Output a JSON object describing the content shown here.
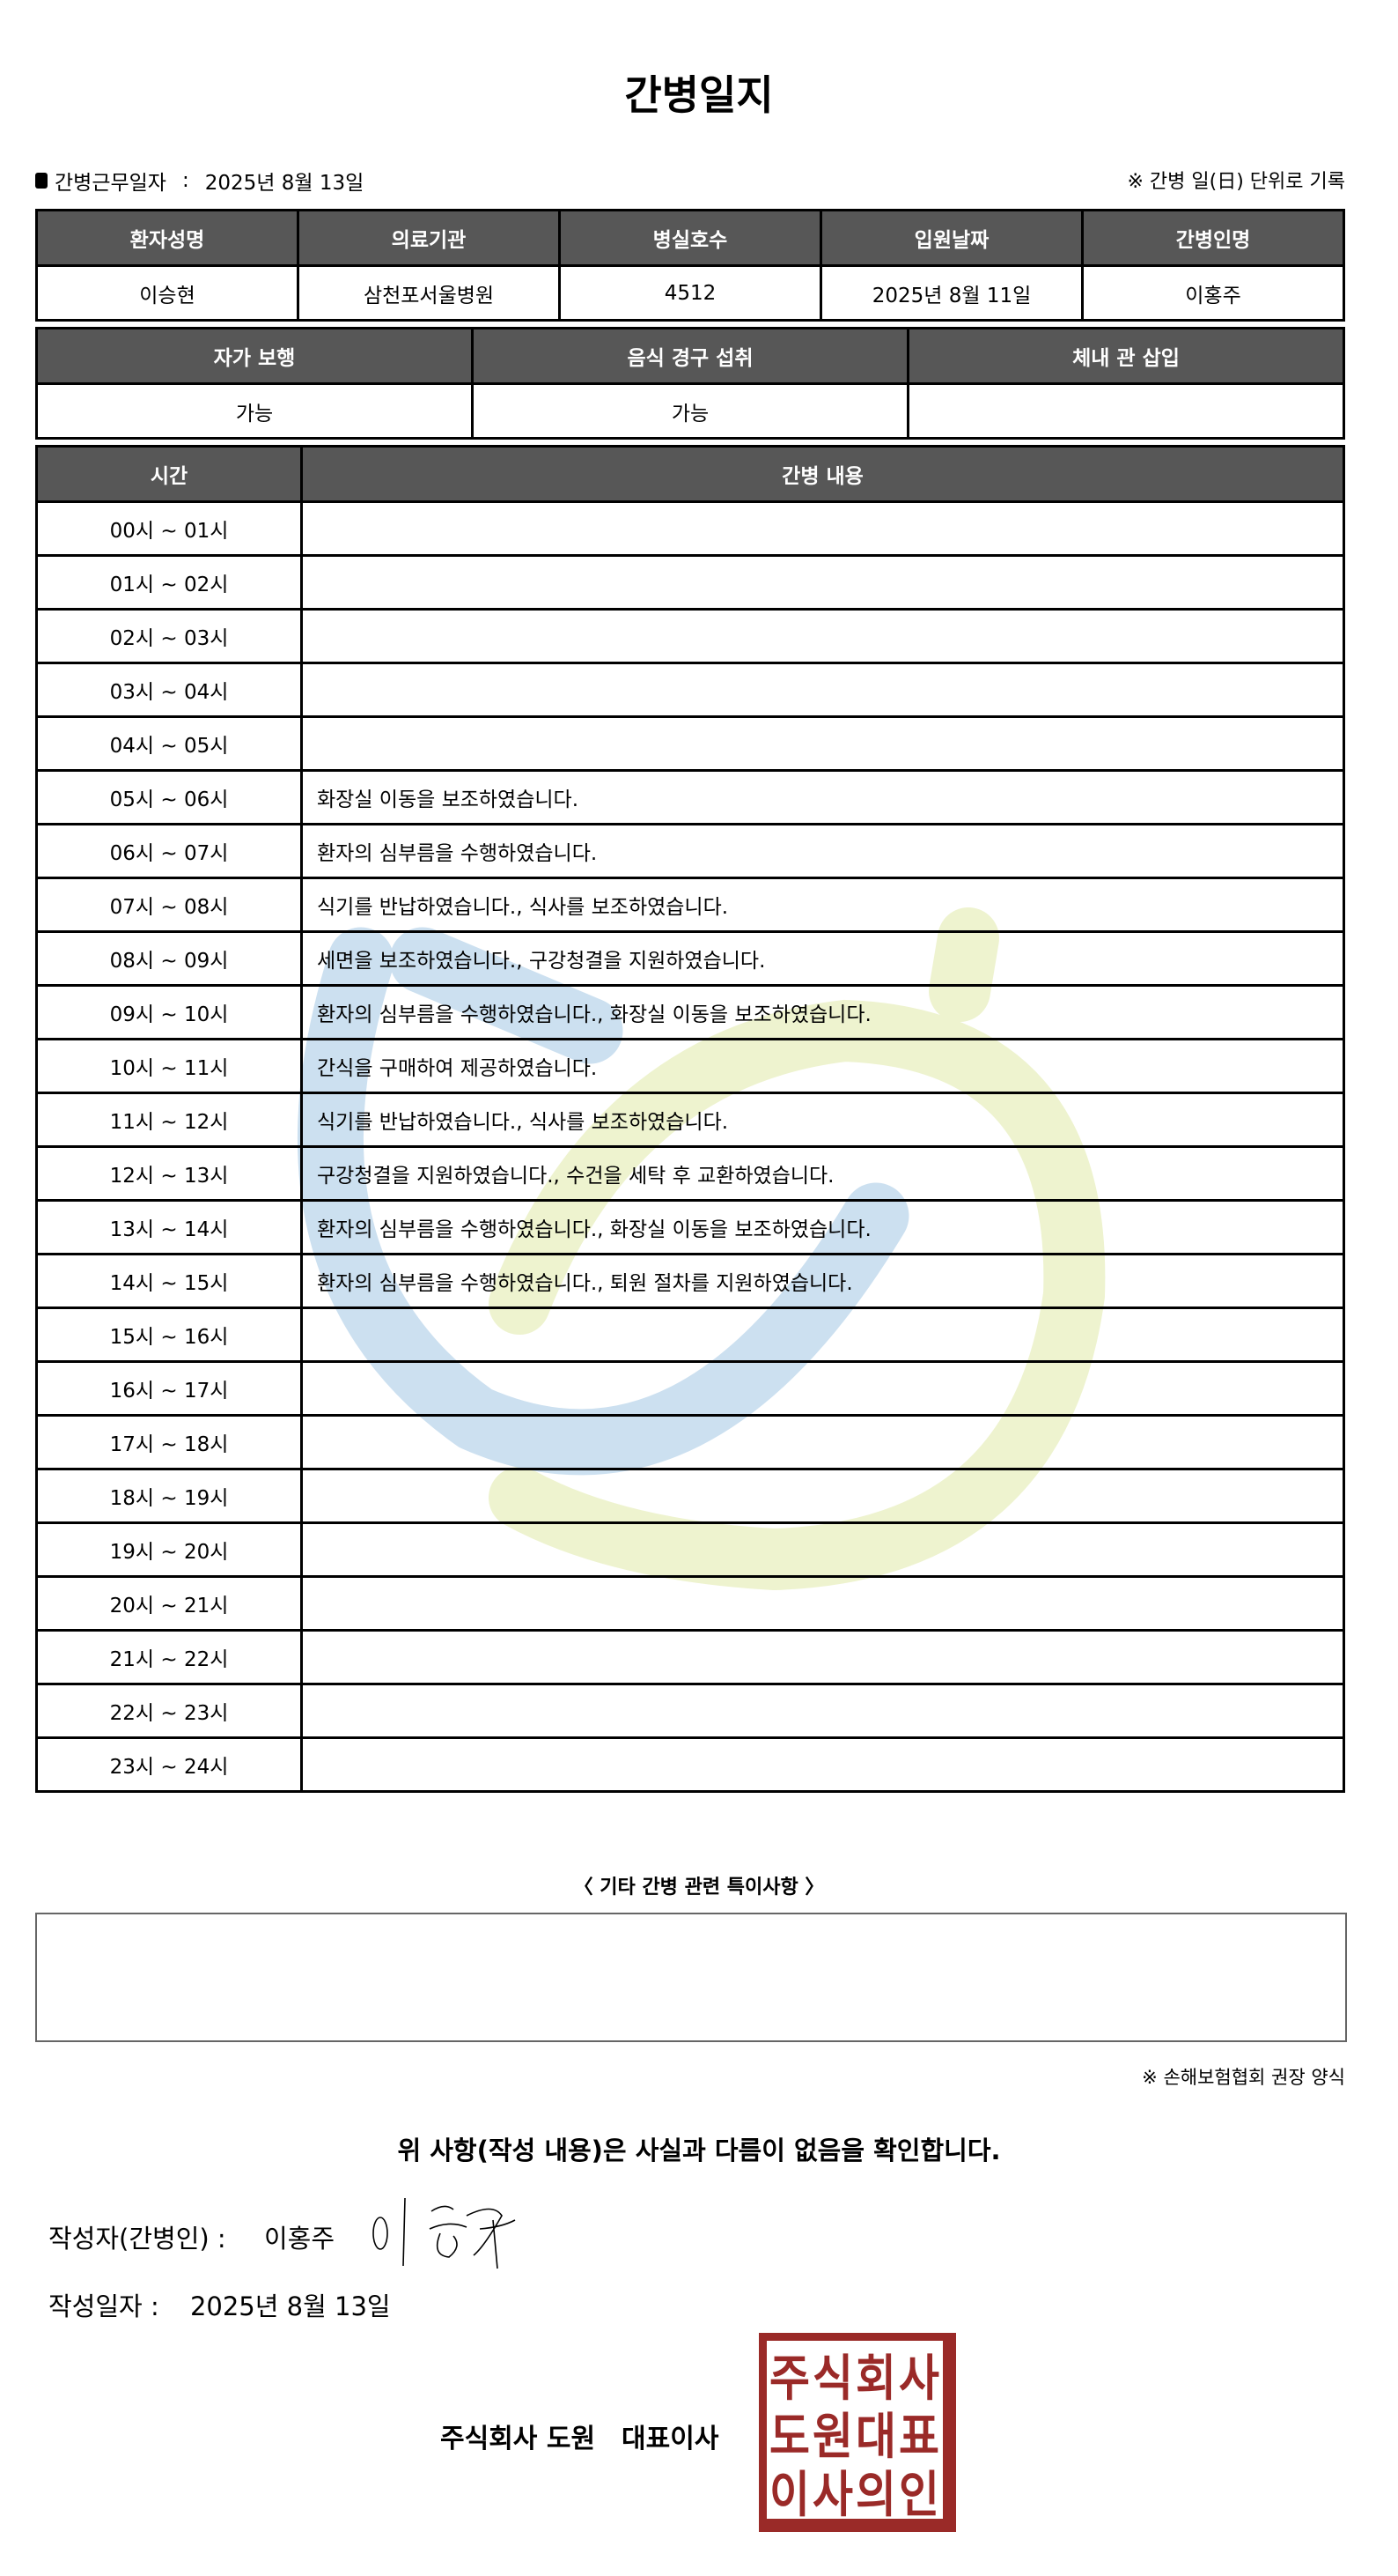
{
  "title": "간병일지",
  "work_date_label": "간병근무일자",
  "work_date_sep": ":",
  "work_date": "2025년 8월 13일",
  "unit_note": "※ 간병 일(日) 단위로 기록",
  "info_table": {
    "headers": [
      "환자성명",
      "의료기관",
      "병실호수",
      "입원날짜",
      "간병인명"
    ],
    "values": [
      "이승현",
      "삼천포서울병원",
      "4512",
      "2025년 8월 11일",
      "이홍주"
    ]
  },
  "status_table": {
    "headers": [
      "자가 보행",
      "음식 경구 섭취",
      "체내 관 삽입"
    ],
    "values": [
      "가능",
      "가능",
      ""
    ]
  },
  "log_table": {
    "headers": [
      "시간",
      "간병 내용"
    ],
    "rows": [
      {
        "time": "00시 ~ 01시",
        "content": ""
      },
      {
        "time": "01시 ~ 02시",
        "content": ""
      },
      {
        "time": "02시 ~ 03시",
        "content": ""
      },
      {
        "time": "03시 ~ 04시",
        "content": ""
      },
      {
        "time": "04시 ~ 05시",
        "content": ""
      },
      {
        "time": "05시 ~ 06시",
        "content": "화장실 이동을 보조하였습니다."
      },
      {
        "time": "06시 ~ 07시",
        "content": "환자의 심부름을 수행하였습니다."
      },
      {
        "time": "07시 ~ 08시",
        "content": "식기를 반납하였습니다., 식사를 보조하였습니다."
      },
      {
        "time": "08시 ~ 09시",
        "content": "세면을 보조하였습니다., 구강청결을 지원하였습니다."
      },
      {
        "time": "09시 ~ 10시",
        "content": "환자의 심부름을 수행하였습니다., 화장실 이동을 보조하였습니다."
      },
      {
        "time": "10시 ~ 11시",
        "content": "간식을 구매하여 제공하였습니다."
      },
      {
        "time": "11시 ~ 12시",
        "content": "식기를 반납하였습니다., 식사를 보조하였습니다."
      },
      {
        "time": "12시 ~ 13시",
        "content": "구강청결을 지원하였습니다., 수건을 세탁 후 교환하였습니다."
      },
      {
        "time": "13시 ~ 14시",
        "content": "환자의 심부름을 수행하였습니다., 화장실 이동을 보조하였습니다."
      },
      {
        "time": "14시 ~ 15시",
        "content": "환자의 심부름을 수행하였습니다., 퇴원 절차를 지원하였습니다."
      },
      {
        "time": "15시 ~ 16시",
        "content": ""
      },
      {
        "time": "16시 ~ 17시",
        "content": ""
      },
      {
        "time": "17시 ~ 18시",
        "content": ""
      },
      {
        "time": "18시 ~ 19시",
        "content": ""
      },
      {
        "time": "19시 ~ 20시",
        "content": ""
      },
      {
        "time": "20시 ~ 21시",
        "content": ""
      },
      {
        "time": "21시 ~ 22시",
        "content": ""
      },
      {
        "time": "22시 ~ 23시",
        "content": ""
      },
      {
        "time": "23시 ~ 24시",
        "content": ""
      }
    ]
  },
  "special_title": "〈 기타 간병 관련 특이사항 〉",
  "special_notes": "",
  "form_note": "※ 손해보험협회 권장 양식",
  "confirm_text": "위 사항(작성 내용)은 사실과 다름이 없음을 확인합니다.",
  "author_label": "작성자(간병인) :",
  "author_name": "이홍주",
  "written_date_label": "작성일자 :",
  "written_date": "2025년 8월 13일",
  "company_line": "주식회사 도원　대표이사",
  "stamp_text": "주식회사도원대표이사의인",
  "colors": {
    "header_bg": "#575757",
    "stamp": "#9a2a28",
    "watermark_blue": "#cce0f0",
    "watermark_yellow": "#eef3cf"
  }
}
